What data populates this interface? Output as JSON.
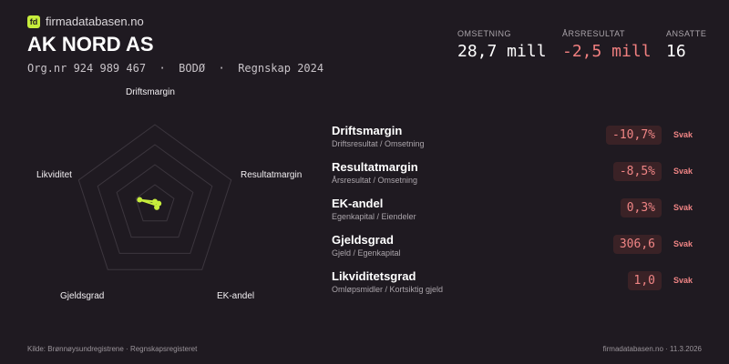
{
  "brand": {
    "logo": "fd",
    "name": "firmadatabasen.no"
  },
  "company": {
    "name": "AK NORD AS",
    "meta": "Org.nr 924 989 467  ·  BODØ  ·  Regnskap 2024"
  },
  "kpis": [
    {
      "label": "OMSETNING",
      "value": "28,7 mill",
      "negative": false
    },
    {
      "label": "ÅRSRESULTAT",
      "value": "-2,5 mill",
      "negative": true
    },
    {
      "label": "ANSATTE",
      "value": "16",
      "negative": false
    }
  ],
  "radar": {
    "axes": [
      "Driftsmargin",
      "Resultatmargin",
      "EK-andel",
      "Gjeldsgrad",
      "Likviditet"
    ],
    "scores": [
      0.04,
      0.05,
      0.04,
      0.0,
      0.2
    ],
    "colors": {
      "grid": "#3c363e",
      "accent": "#c6ec3c"
    }
  },
  "metrics": [
    {
      "name": "Driftsmargin",
      "desc": "Driftsresultat / Omsetning",
      "value": "-10,7%",
      "tag": "Svak"
    },
    {
      "name": "Resultatmargin",
      "desc": "Årsresultat / Omsetning",
      "value": "-8,5%",
      "tag": "Svak"
    },
    {
      "name": "EK-andel",
      "desc": "Egenkapital / Eiendeler",
      "value": "0,3%",
      "tag": "Svak"
    },
    {
      "name": "Gjeldsgrad",
      "desc": "Gjeld / Egenkapital",
      "value": "306,6",
      "tag": "Svak"
    },
    {
      "name": "Likviditetsgrad",
      "desc": "Omløpsmidler / Kortsiktig gjeld",
      "value": "1,0",
      "tag": "Svak"
    }
  ],
  "footer": {
    "source": "Kilde: Brønnøysundregistrene · Regnskapsregisteret",
    "right": "firmadatabasen.no · 11.3.2026"
  }
}
